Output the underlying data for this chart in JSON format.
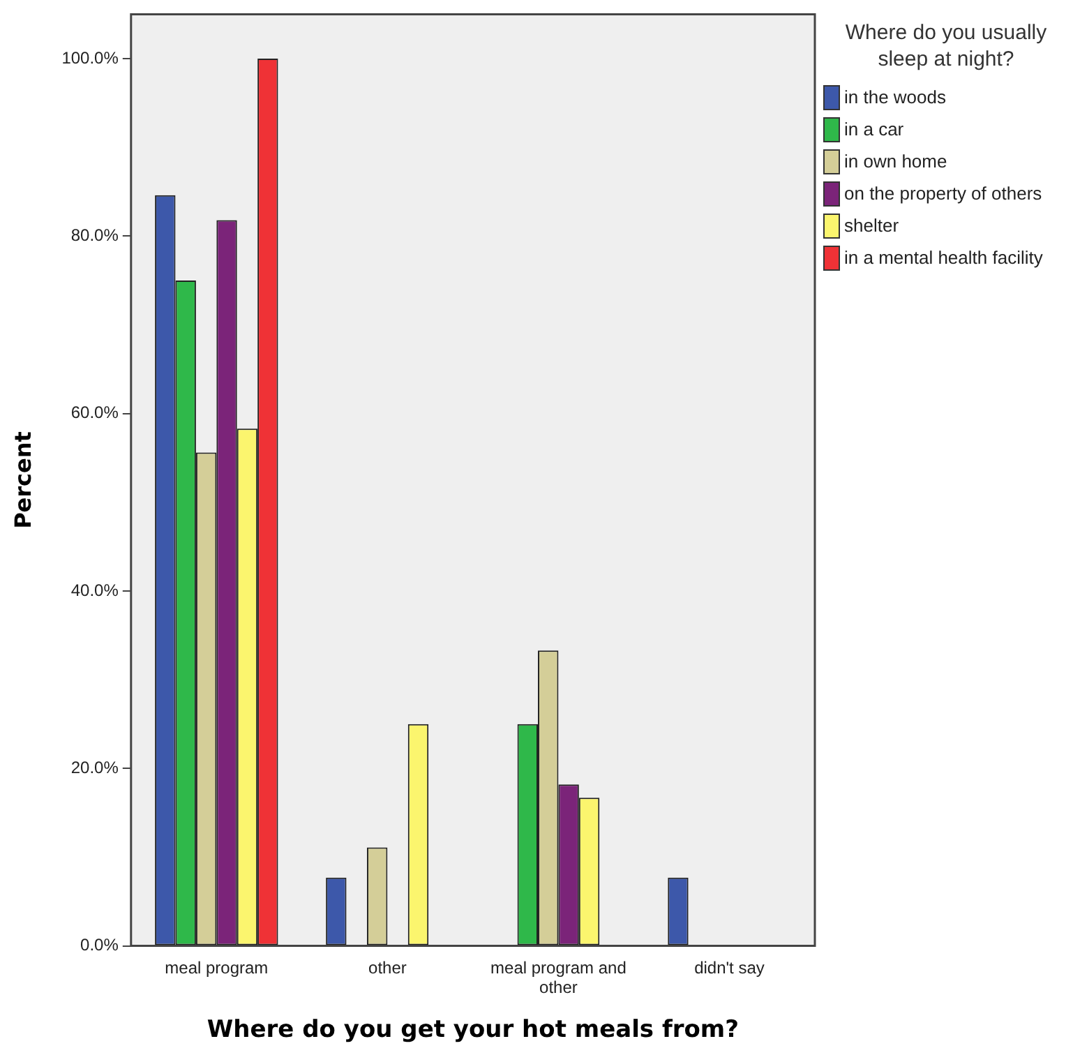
{
  "chart_data": {
    "type": "bar",
    "xlabel": "Where do you get your hot meals from?",
    "ylabel": "Percent",
    "legend_title": "Where do you usually sleep at night?",
    "legend": "top right",
    "grid": false,
    "categories": [
      "meal program",
      "other",
      "meal program and other",
      "didn't say"
    ],
    "series": [
      {
        "name": "in the woods",
        "color": "#3d58aa",
        "values": [
          84.6,
          7.7,
          0,
          7.7
        ]
      },
      {
        "name": "in a car",
        "color": "#2fb84a",
        "values": [
          75.0,
          0,
          25.0,
          0
        ]
      },
      {
        "name": "in own home",
        "color": "#d4ce98",
        "values": [
          55.6,
          11.1,
          33.3,
          0
        ]
      },
      {
        "name": "on the property of others",
        "color": "#7b2479",
        "values": [
          81.8,
          0,
          18.2,
          0
        ]
      },
      {
        "name": "shelter",
        "color": "#fbf56e",
        "values": [
          58.3,
          25.0,
          16.7,
          0
        ]
      },
      {
        "name": "in a mental health facility",
        "color": "#ef3236",
        "values": [
          100.0,
          0,
          0,
          0
        ]
      }
    ],
    "ylim": [
      0,
      105
    ],
    "yticks": [
      {
        "value": 0,
        "label": "0.0%"
      },
      {
        "value": 20,
        "label": "20.0%"
      },
      {
        "value": 40,
        "label": "40.0%"
      },
      {
        "value": 60,
        "label": "60.0%"
      },
      {
        "value": 80,
        "label": "80.0%"
      },
      {
        "value": 100,
        "label": "100.0%"
      }
    ]
  }
}
